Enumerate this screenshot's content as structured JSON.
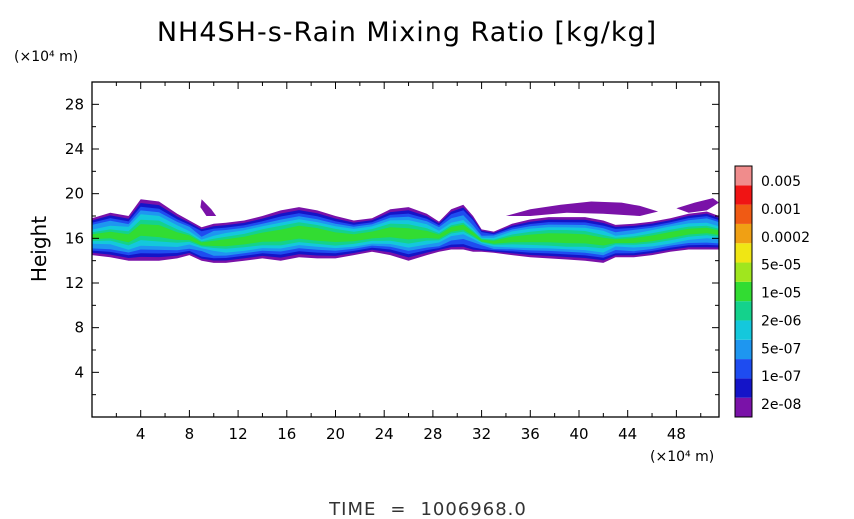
{
  "chart_data": {
    "type": "heatmap",
    "title": "NH4SH-s-Rain Mixing Ratio [kg/kg]",
    "ylabel": "Height",
    "xlabel": "",
    "x_unit": "(×10⁴ m)",
    "y_unit": "(×10⁴ m)",
    "xlim": [
      0,
      51.5
    ],
    "ylim": [
      0,
      30
    ],
    "x_ticks": [
      4,
      8,
      12,
      16,
      20,
      24,
      28,
      32,
      36,
      40,
      44,
      48
    ],
    "y_ticks": [
      4,
      8,
      12,
      16,
      20,
      24,
      28
    ],
    "grid": false,
    "legend_position": "right",
    "colorbar": {
      "colors": [
        "#7a12a8",
        "#1414c8",
        "#1e4cf0",
        "#1e96f0",
        "#14c8dc",
        "#14d28c",
        "#32dc32",
        "#a0e61e",
        "#f0e614",
        "#f0a014",
        "#f05a14",
        "#f01414",
        "#f08c8c"
      ],
      "labels": [
        "2e-08",
        "1e-07",
        "5e-07",
        "2e-06",
        "1e-05",
        "5e-05",
        "0.0002",
        "0.001",
        "0.005"
      ]
    },
    "cloud_layer": {
      "columns": [
        [
          0,
          14.5,
          17.8,
          3.0
        ],
        [
          1.5,
          14.3,
          18.3,
          3.2
        ],
        [
          3,
          14.0,
          18.0,
          4.0
        ],
        [
          4,
          14.0,
          19.5,
          4.2
        ],
        [
          5.5,
          14.0,
          19.3,
          4.5
        ],
        [
          7,
          14.2,
          18.2,
          3.8
        ],
        [
          8,
          14.5,
          17.6,
          3.0
        ],
        [
          9,
          14.0,
          17.0,
          2.0
        ],
        [
          10,
          13.8,
          17.3,
          3.0
        ],
        [
          11,
          13.8,
          17.4,
          3.8
        ],
        [
          12.5,
          14.0,
          17.6,
          4.2
        ],
        [
          14,
          14.2,
          18.0,
          4.8
        ],
        [
          15.5,
          14.0,
          18.5,
          5.2
        ],
        [
          17,
          14.3,
          18.8,
          5.6
        ],
        [
          18.5,
          14.2,
          18.5,
          5.8
        ],
        [
          20,
          14.2,
          18.0,
          5.0
        ],
        [
          21.5,
          14.5,
          17.6,
          4.5
        ],
        [
          23,
          14.8,
          17.8,
          4.5
        ],
        [
          24.5,
          14.5,
          18.6,
          4.8
        ],
        [
          26,
          14.0,
          18.8,
          4.6
        ],
        [
          27.5,
          14.5,
          18.2,
          3.8
        ],
        [
          28.5,
          14.8,
          17.5,
          3.0
        ],
        [
          29.5,
          15.0,
          18.6,
          2.6
        ],
        [
          30.5,
          15.0,
          19.0,
          2.5
        ],
        [
          31.3,
          14.8,
          18.0,
          2.2
        ],
        [
          32,
          14.8,
          16.8,
          2.0
        ],
        [
          33,
          14.7,
          16.6,
          3.2
        ],
        [
          34.5,
          14.5,
          17.3,
          4.0
        ],
        [
          36,
          14.3,
          17.7,
          4.4
        ],
        [
          37.5,
          14.2,
          17.9,
          4.8
        ],
        [
          39,
          14.1,
          17.9,
          5.0
        ],
        [
          40.5,
          14.0,
          17.9,
          4.6
        ],
        [
          42,
          13.8,
          17.6,
          4.0
        ],
        [
          43,
          14.3,
          17.2,
          2.6
        ],
        [
          44.5,
          14.3,
          17.3,
          3.2
        ],
        [
          46,
          14.5,
          17.5,
          3.8
        ],
        [
          47.5,
          14.8,
          17.8,
          4.0
        ],
        [
          49,
          15.0,
          18.2,
          3.6
        ],
        [
          50.5,
          15.0,
          18.4,
          3.2
        ],
        [
          51.5,
          15.0,
          18.0,
          3.0
        ]
      ],
      "upper_wisps": [
        [
          [
            9.0,
            19.5
          ],
          [
            9.8,
            18.6
          ],
          [
            10.2,
            18.0
          ],
          [
            9.4,
            18.0
          ],
          [
            8.9,
            18.8
          ]
        ],
        [
          [
            34.0,
            18.0
          ],
          [
            36.0,
            18.6
          ],
          [
            38.5,
            19.0
          ],
          [
            41.0,
            19.3
          ],
          [
            43.5,
            19.2
          ],
          [
            45.0,
            18.9
          ],
          [
            46.5,
            18.4
          ],
          [
            45.0,
            18.0
          ],
          [
            42.0,
            18.2
          ],
          [
            39.0,
            18.3
          ],
          [
            36.0,
            18.0
          ]
        ],
        [
          [
            48.0,
            18.7
          ],
          [
            49.5,
            19.2
          ],
          [
            51.0,
            19.6
          ],
          [
            51.5,
            19.2
          ],
          [
            50.5,
            18.5
          ],
          [
            49.0,
            18.3
          ]
        ]
      ],
      "intensity_scale": [
        0,
        6
      ]
    }
  },
  "footer": {
    "time_label": "TIME",
    "time_eq": "=",
    "time_value": "1006968.0"
  }
}
